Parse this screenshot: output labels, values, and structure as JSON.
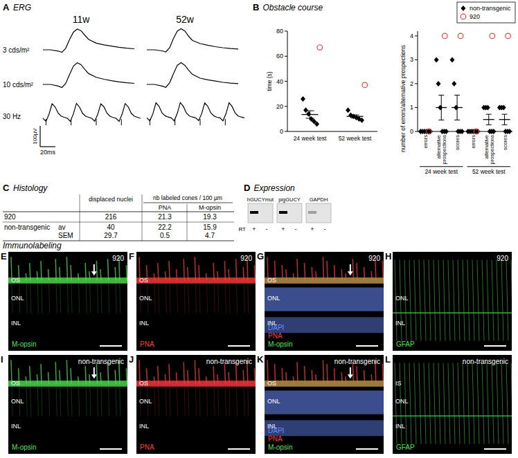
{
  "erg": {
    "letter": "A",
    "title": "ERG",
    "ages": [
      "11w",
      "52w"
    ],
    "stimuli": [
      {
        "label": "3 cds/m²",
        "time_ms": [
          0,
          10,
          20,
          25,
          30,
          35,
          40,
          45,
          50,
          55,
          60,
          70,
          80,
          90,
          100,
          110,
          120
        ],
        "traces": [
          [
            0,
            0,
            -6,
            -12,
            8,
            50,
            85,
            100,
            92,
            70,
            50,
            32,
            24,
            18,
            12,
            8,
            5
          ],
          [
            0,
            0,
            -5,
            -10,
            10,
            55,
            90,
            102,
            90,
            65,
            45,
            30,
            22,
            15,
            10,
            6,
            4
          ]
        ]
      },
      {
        "label": "10 cds/m²",
        "time_ms": [
          0,
          10,
          20,
          25,
          30,
          35,
          40,
          45,
          50,
          55,
          60,
          70,
          80,
          90,
          100,
          110,
          120
        ],
        "traces": [
          [
            0,
            0,
            -8,
            -15,
            5,
            48,
            88,
            104,
            95,
            72,
            52,
            34,
            25,
            18,
            12,
            8,
            5
          ],
          [
            0,
            0,
            -8,
            -14,
            8,
            52,
            92,
            105,
            92,
            68,
            48,
            30,
            22,
            16,
            10,
            6,
            4
          ]
        ]
      },
      {
        "label": "30 Hz",
        "time_ms": [
          0,
          4,
          8,
          12,
          16,
          20,
          24,
          28,
          32,
          36,
          40,
          44,
          48,
          52,
          56,
          60,
          64,
          68,
          72,
          76,
          80,
          84,
          88,
          92,
          96,
          100,
          104,
          108,
          112,
          116,
          120,
          124,
          128
        ],
        "traces": [
          [
            -10,
            -25,
            10,
            60,
            45,
            15,
            0,
            -5,
            -10,
            -25,
            12,
            62,
            44,
            14,
            0,
            -5,
            -10,
            -24,
            10,
            60,
            46,
            15,
            0,
            -6,
            -10,
            -25,
            11,
            61,
            45,
            14,
            0,
            -5,
            -10
          ],
          [
            -8,
            -22,
            12,
            65,
            48,
            16,
            2,
            -4,
            -8,
            -22,
            14,
            66,
            47,
            15,
            1,
            -4,
            -8,
            -21,
            12,
            64,
            48,
            16,
            2,
            -5,
            -8,
            -22,
            13,
            65,
            47,
            15,
            1,
            -4,
            -8
          ]
        ],
        "stimulus_times_ms": [
          4,
          37,
          70,
          103
        ]
      }
    ],
    "scale_bar": {
      "amplitude": 100,
      "amplitude_label": "100µV",
      "time": 20,
      "time_label": "20ms"
    }
  },
  "obstacle": {
    "letter": "B",
    "title": "Obstacle course"
  },
  "chart_data": [
    {
      "type": "scatter",
      "y_label": "time (s)",
      "categories": [
        "24 week test",
        "52 week test"
      ],
      "ylim": [
        0,
        80
      ],
      "yticks": [
        0,
        20,
        40,
        60,
        80
      ],
      "series": [
        {
          "color": "#000000",
          "marker": "diamond",
          "values": [
            [
              26,
              17,
              14,
              10,
              8,
              6
            ],
            [
              17,
              13,
              12,
              11,
              10,
              9
            ]
          ],
          "means": [
            13.5,
            12
          ],
          "sem": [
            3.0,
            1.2
          ]
        },
        {
          "color": "#e8413c",
          "marker": "circle-open",
          "values": [
            [
              67
            ],
            [
              37
            ]
          ]
        }
      ]
    },
    {
      "type": "scatter",
      "y_label": "number of errors/alternative prospections",
      "categories": [
        "errors",
        "alternative prospections",
        "scores",
        "errors",
        "alternative prospections",
        "scores"
      ],
      "groups": [
        "24 week test",
        "52 week test"
      ],
      "ylim": [
        0,
        4.2
      ],
      "yticks": [
        0,
        1,
        2,
        3,
        4
      ],
      "legend": "top-right",
      "series": [
        {
          "name": "non-transgenic",
          "color": "#000000",
          "marker": "diamond",
          "values": [
            [
              0,
              0,
              0,
              0,
              0,
              0
            ],
            [
              3,
              2,
              1,
              0,
              0,
              0
            ],
            [
              3,
              2,
              1,
              0,
              0,
              0
            ],
            [
              0,
              0,
              0,
              0,
              0,
              0
            ],
            [
              1,
              1,
              1,
              0,
              0,
              0
            ],
            [
              1,
              1,
              1,
              0,
              0,
              0
            ]
          ],
          "means": [
            0,
            1,
            1,
            0,
            0.5,
            0.5
          ],
          "sem": [
            0,
            0.52,
            0.52,
            0,
            0.22,
            0.22
          ]
        },
        {
          "name": "920",
          "color": "#e8413c",
          "marker": "circle-open",
          "values": [
            [
              0
            ],
            [
              4
            ],
            [
              4
            ],
            [
              0
            ],
            [
              4
            ],
            [
              4
            ]
          ]
        }
      ]
    }
  ],
  "histology": {
    "letter": "C",
    "title": "Histology",
    "header": [
      "displaced nuclei",
      "nb labeled cones / 100 µm"
    ],
    "subheader": [
      "PNA",
      "M-opsin"
    ],
    "rows": [
      [
        "920",
        null,
        216,
        21.3,
        19.3
      ],
      [
        "non-transgenic",
        "av",
        40,
        22.2,
        15.9
      ],
      [
        null,
        "SEM",
        29.7,
        0.5,
        4.7
      ]
    ]
  },
  "expression": {
    "letter": "D",
    "title": "Expression",
    "rt_label": "RT",
    "lanes": [
      "+",
      "-"
    ],
    "genes": [
      {
        "label": "hGUCYmut",
        "bands": [
          1,
          0
        ]
      },
      {
        "label": "pigGUCY",
        "bands": [
          1,
          0
        ]
      },
      {
        "label": "GAPDH",
        "bands": [
          0.3,
          0
        ]
      }
    ]
  },
  "immunolabeling": {
    "title": "Immunolabeling",
    "panels": [
      {
        "letter": "E",
        "genotype": "920",
        "layers": [
          "OS",
          "ONL",
          "INL"
        ],
        "stains": [
          {
            "text": "M-opsin",
            "color": "#4ee24e"
          }
        ],
        "kind": "cones",
        "arrow": true
      },
      {
        "letter": "F",
        "genotype": "920",
        "layers": [
          "OS",
          "ONL",
          "INL"
        ],
        "stains": [
          {
            "text": "PNA",
            "color": "#ff3b3b"
          }
        ],
        "kind": "cones",
        "arrow": false
      },
      {
        "letter": "G",
        "genotype": "920",
        "layers": [
          "OS",
          "ONL",
          "INL"
        ],
        "stains": [
          {
            "text": "DAPI",
            "color": "#6b8cff"
          },
          {
            "text": "PNA",
            "color": "#ff3b3b"
          },
          {
            "text": "M-opsin",
            "color": "#4ee24e"
          }
        ],
        "kind": "merge",
        "arrow": true
      },
      {
        "letter": "H",
        "genotype": "920",
        "layers": [
          "ONL",
          "INL"
        ],
        "stains": [
          {
            "text": "GFAP",
            "color": "#4ee24e"
          }
        ],
        "kind": "glia",
        "arrow": false
      },
      {
        "letter": "I",
        "genotype": "non-transgenic",
        "layers": [
          "OS",
          "ONL",
          "INL"
        ],
        "stains": [
          {
            "text": "M-opsin",
            "color": "#4ee24e"
          }
        ],
        "kind": "cones",
        "arrow": true
      },
      {
        "letter": "J",
        "genotype": "non-transgenic",
        "layers": [
          "OS",
          "ONL",
          "INL"
        ],
        "stains": [
          {
            "text": "PNA",
            "color": "#ff3b3b"
          }
        ],
        "kind": "cones",
        "arrow": false
      },
      {
        "letter": "K",
        "genotype": "non-transgenic",
        "layers": [
          "OS",
          "ONL",
          "INL"
        ],
        "stains": [
          {
            "text": "DAPI",
            "color": "#6b8cff"
          },
          {
            "text": "PNA",
            "color": "#ff3b3b"
          },
          {
            "text": "M-opsin",
            "color": "#4ee24e"
          }
        ],
        "kind": "merge",
        "arrow": true
      },
      {
        "letter": "L",
        "genotype": "non-transgenic",
        "layers": [
          "IS",
          "ONL",
          "INL"
        ],
        "stains": [
          {
            "text": "GFAP",
            "color": "#4ee24e"
          }
        ],
        "kind": "glia",
        "arrow": false
      }
    ]
  }
}
